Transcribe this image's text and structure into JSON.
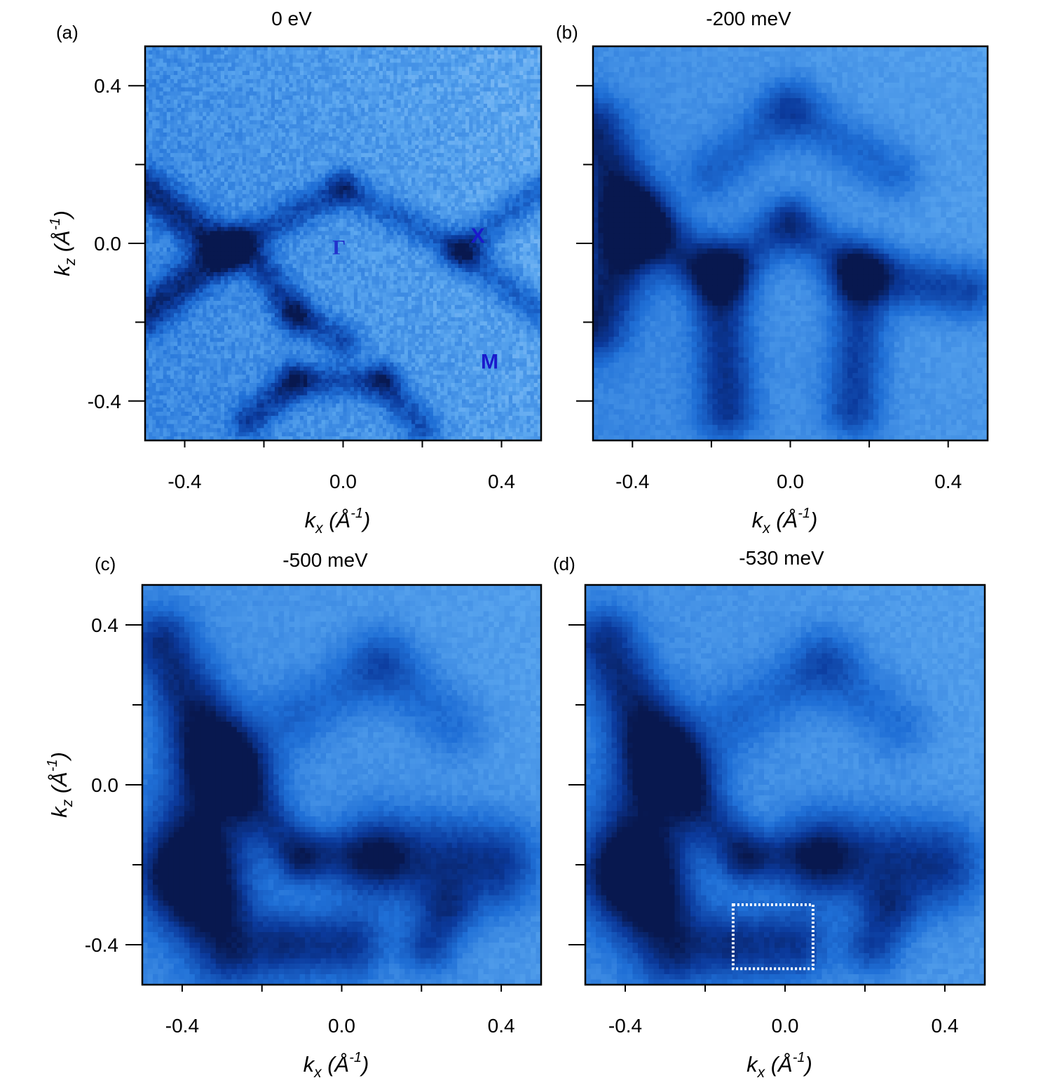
{
  "chart_data": [
    {
      "type": "heatmap",
      "panel": "(a)",
      "title": "0 eV",
      "xlabel": {
        "main": "k",
        "sub": "x",
        "unit_open": " (",
        "unit_letter": "Å",
        "unit_exp": "-1",
        "unit_close": ")"
      },
      "ylabel": {
        "main": "k",
        "sub": "z",
        "unit_open": " (",
        "unit_letter": "Å",
        "unit_exp": "-1",
        "unit_close": ")"
      },
      "xlim": [
        -0.5,
        0.5
      ],
      "ylim": [
        -0.5,
        0.5
      ],
      "x_ticks": [
        -0.4,
        0.0,
        0.4
      ],
      "x_tick_labels": [
        "-0.4",
        "0.0",
        "0.4"
      ],
      "y_ticks": [
        0.4,
        0.0,
        -0.4
      ],
      "y_tick_labels": [
        "0.4",
        "0.0",
        "-0.4"
      ],
      "minor_ticks": [
        -0.2,
        0.2
      ],
      "show_y_tick_labels": true,
      "show_x_axis_label": true,
      "show_y_axis_label": true,
      "grain": "coarse",
      "annotations": [
        {
          "text": "Γ",
          "x": -0.01,
          "y": -0.01,
          "color": "#2233cc",
          "style": "gamma"
        },
        {
          "text": "X",
          "x": 0.34,
          "y": 0.02,
          "color": "#1a1acc",
          "style": "sym"
        },
        {
          "text": "M",
          "x": 0.37,
          "y": -0.3,
          "color": "#1a1acc",
          "style": "sym"
        }
      ],
      "colormap": [
        "#08184f",
        "#0b3a9c",
        "#1f6fd6",
        "#5aa6ef",
        "#bfe0ff"
      ]
    },
    {
      "type": "heatmap",
      "panel": "(b)",
      "title": "-200 meV",
      "xlabel": {
        "main": "k",
        "sub": "x",
        "unit_open": " (",
        "unit_letter": "Å",
        "unit_exp": "-1",
        "unit_close": ")"
      },
      "xlim": [
        -0.5,
        0.5
      ],
      "ylim": [
        -0.5,
        0.5
      ],
      "x_ticks": [
        -0.4,
        0.0,
        0.4
      ],
      "x_tick_labels": [
        "-0.4",
        "0.0",
        "0.4"
      ],
      "y_ticks": [
        0.4,
        0.0,
        -0.4
      ],
      "minor_ticks": [
        -0.2,
        0.2
      ],
      "show_y_tick_labels": false,
      "show_x_axis_label": true,
      "show_y_axis_label": false,
      "grain": "fine",
      "colormap": [
        "#08184f",
        "#0b3a9c",
        "#1f6fd6",
        "#5aa6ef",
        "#bfe0ff"
      ]
    },
    {
      "type": "heatmap",
      "panel": "(c)",
      "title": "-500 meV",
      "xlabel": {
        "main": "k",
        "sub": "x",
        "unit_open": " (",
        "unit_letter": "Å",
        "unit_exp": "-1",
        "unit_close": ")"
      },
      "ylabel": {
        "main": "k",
        "sub": "z",
        "unit_open": " (",
        "unit_letter": "Å",
        "unit_exp": "-1",
        "unit_close": ")"
      },
      "xlim": [
        -0.5,
        0.5
      ],
      "ylim": [
        -0.5,
        0.5
      ],
      "x_ticks": [
        -0.4,
        0.0,
        0.4
      ],
      "x_tick_labels": [
        "-0.4",
        "0.0",
        "0.4"
      ],
      "y_ticks": [
        0.4,
        0.0,
        -0.4
      ],
      "y_tick_labels": [
        "0.4",
        "0.0",
        "-0.4"
      ],
      "minor_ticks": [
        -0.2,
        0.2
      ],
      "show_y_tick_labels": true,
      "show_x_axis_label": true,
      "show_y_axis_label": true,
      "grain": "fine",
      "colormap": [
        "#08184f",
        "#0b3a9c",
        "#1f6fd6",
        "#5aa6ef",
        "#bfe0ff"
      ]
    },
    {
      "type": "heatmap",
      "panel": "(d)",
      "title": "-530 meV",
      "xlabel": {
        "main": "k",
        "sub": "x",
        "unit_open": " (",
        "unit_letter": "Å",
        "unit_exp": "-1",
        "unit_close": ")"
      },
      "xlim": [
        -0.5,
        0.5
      ],
      "ylim": [
        -0.5,
        0.5
      ],
      "x_ticks": [
        -0.4,
        0.0,
        0.4
      ],
      "x_tick_labels": [
        "-0.4",
        "0.0",
        "0.4"
      ],
      "y_ticks": [
        0.4,
        0.0,
        -0.4
      ],
      "minor_ticks": [
        -0.2,
        0.2
      ],
      "show_y_tick_labels": false,
      "show_x_axis_label": true,
      "show_y_axis_label": false,
      "grain": "fine",
      "highlight_box": {
        "x": [
          -0.13,
          0.07
        ],
        "y": [
          -0.46,
          -0.3
        ],
        "color": "#ffffff",
        "style": "dotted"
      },
      "colormap": [
        "#08184f",
        "#0b3a9c",
        "#1f6fd6",
        "#5aa6ef",
        "#bfe0ff"
      ]
    }
  ]
}
